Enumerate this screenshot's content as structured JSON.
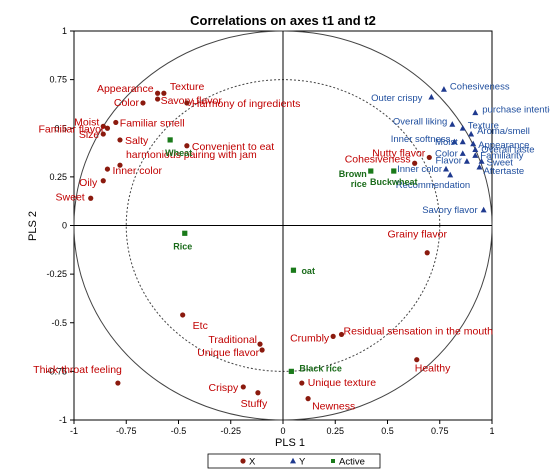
{
  "chart_data": {
    "type": "scatter",
    "title": "Correlations on axes t1 and t2",
    "xlabel": "PLS 1",
    "ylabel": "PLS 2",
    "xlim": [
      -1,
      1
    ],
    "ylim": [
      -1,
      1
    ],
    "x_ticks": [
      "-1",
      "-0.75",
      "-0.5",
      "-0.25",
      "0",
      "0.25",
      "0.5",
      "0.75",
      "1"
    ],
    "y_ticks": [
      "1",
      "0.75",
      "0.5",
      "0.25",
      "0",
      "-0.25",
      "-0.5",
      "-0.75",
      "-1"
    ],
    "circles": [
      1.0,
      0.75
    ],
    "grid": false,
    "legend_position": "bottom",
    "legend": [
      "X",
      "Y",
      "Active"
    ],
    "series": [
      {
        "name": "X",
        "marker": "circle",
        "color": "#8b1a0e",
        "label_color": "#c00000",
        "points": [
          {
            "label": "Appearance",
            "x": -0.6,
            "y": 0.68
          },
          {
            "label": "Texture",
            "x": -0.57,
            "y": 0.68
          },
          {
            "label": "Color",
            "x": -0.67,
            "y": 0.63
          },
          {
            "label": "Savory flavor",
            "x": -0.6,
            "y": 0.65
          },
          {
            "label": "Harmony of ingredients",
            "x": -0.46,
            "y": 0.63
          },
          {
            "label": "Moist",
            "x": -0.86,
            "y": 0.51
          },
          {
            "label": "Familiar flavor",
            "x": -0.84,
            "y": 0.5
          },
          {
            "label": "Familiar smell",
            "x": -0.8,
            "y": 0.53
          },
          {
            "label": "Size",
            "x": -0.86,
            "y": 0.47
          },
          {
            "label": "Salty",
            "x": -0.78,
            "y": 0.44
          },
          {
            "label": "Convenient to eat",
            "x": -0.46,
            "y": 0.41
          },
          {
            "label": "harmonious pairing with jam",
            "x": -0.78,
            "y": 0.31
          },
          {
            "label": "Inner color",
            "x": -0.84,
            "y": 0.29
          },
          {
            "label": "Oily",
            "x": -0.86,
            "y": 0.23
          },
          {
            "label": "Sweet",
            "x": -0.92,
            "y": 0.14
          },
          {
            "label": "Nutty flavor",
            "x": 0.7,
            "y": 0.35
          },
          {
            "label": "Cohesiveness",
            "x": 0.63,
            "y": 0.32
          },
          {
            "label": "Grainy flavor",
            "x": 0.69,
            "y": -0.14
          },
          {
            "label": "Etc",
            "x": -0.48,
            "y": -0.46
          },
          {
            "label": "Traditional",
            "x": -0.11,
            "y": -0.61
          },
          {
            "label": "Unique flavor",
            "x": -0.1,
            "y": -0.64
          },
          {
            "label": "Crumbly",
            "x": 0.24,
            "y": -0.57
          },
          {
            "label": "Residual sensation in the mouth",
            "x": 0.28,
            "y": -0.56
          },
          {
            "label": "Healthy",
            "x": 0.64,
            "y": -0.69
          },
          {
            "label": "Thick throat feeling",
            "x": -0.79,
            "y": -0.81
          },
          {
            "label": "Crispy",
            "x": -0.19,
            "y": -0.83
          },
          {
            "label": "Stuffy",
            "x": -0.12,
            "y": -0.86
          },
          {
            "label": "Unique texture",
            "x": 0.09,
            "y": -0.81
          },
          {
            "label": "Newness",
            "x": 0.12,
            "y": -0.89
          }
        ]
      },
      {
        "name": "Y",
        "marker": "triangle",
        "color": "#1f3a8f",
        "label_color": "#1f4e9e",
        "points": [
          {
            "label": "Cohesiveness",
            "x": 0.77,
            "y": 0.7
          },
          {
            "label": "Outer crispy",
            "x": 0.71,
            "y": 0.66
          },
          {
            "label": "purchase intention",
            "x": 0.92,
            "y": 0.58
          },
          {
            "label": "Overall liking",
            "x": 0.81,
            "y": 0.52
          },
          {
            "label": "Texture",
            "x": 0.86,
            "y": 0.5
          },
          {
            "label": "Aroma/smell",
            "x": 0.9,
            "y": 0.47
          },
          {
            "label": "Inner softness",
            "x": 0.82,
            "y": 0.43
          },
          {
            "label": "Moist",
            "x": 0.86,
            "y": 0.43
          },
          {
            "label": "Appearance",
            "x": 0.91,
            "y": 0.42
          },
          {
            "label": "Overall taste",
            "x": 0.92,
            "y": 0.39
          },
          {
            "label": "Color",
            "x": 0.86,
            "y": 0.37
          },
          {
            "label": "Familiarity",
            "x": 0.92,
            "y": 0.36
          },
          {
            "label": "Flavor",
            "x": 0.88,
            "y": 0.33
          },
          {
            "label": "Sweet",
            "x": 0.95,
            "y": 0.33
          },
          {
            "label": "Aftertaste",
            "x": 0.94,
            "y": 0.3
          },
          {
            "label": "Inner color",
            "x": 0.78,
            "y": 0.29
          },
          {
            "label": "Recommendation",
            "x": 0.8,
            "y": 0.26
          },
          {
            "label": "Savory flavor",
            "x": 0.96,
            "y": 0.08
          }
        ]
      },
      {
        "name": "Active",
        "marker": "square",
        "color": "#1a7a1a",
        "label_color": "#1a6b1a",
        "points": [
          {
            "label": "Wheat",
            "x": -0.54,
            "y": 0.44
          },
          {
            "label": "Brown rice",
            "x": 0.42,
            "y": 0.28
          },
          {
            "label": "Buckwheat",
            "x": 0.53,
            "y": 0.28
          },
          {
            "label": "Rice",
            "x": -0.47,
            "y": -0.04
          },
          {
            "label": "oat",
            "x": 0.05,
            "y": -0.23
          },
          {
            "label": "Black rice",
            "x": 0.04,
            "y": -0.75
          }
        ]
      }
    ]
  }
}
